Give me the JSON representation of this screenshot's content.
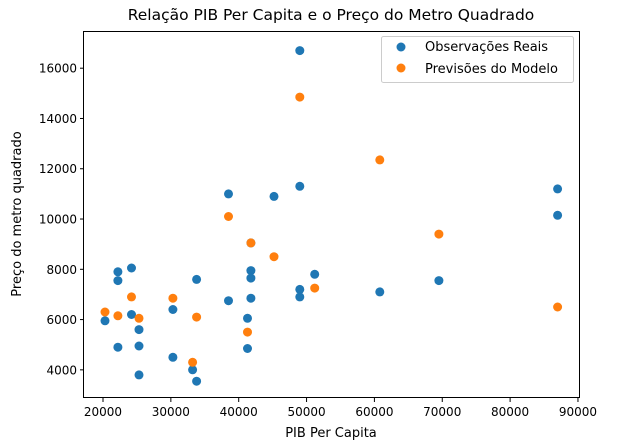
{
  "chart_data": {
    "type": "scatter",
    "title": "Relação PIB Per Capita e o Preço do Metro Quadrado",
    "xlabel": "PIB Per Capita",
    "ylabel": "Preço do metro quadrado",
    "xlim": [
      17200,
      90300
    ],
    "ylim": [
      2880,
      17440
    ],
    "xticks": [
      20000,
      30000,
      40000,
      50000,
      60000,
      70000,
      80000,
      90000
    ],
    "yticks": [
      4000,
      6000,
      8000,
      10000,
      12000,
      14000,
      16000
    ],
    "grid": false,
    "legend_position": "top-right",
    "series": [
      {
        "name": "Observações Reais",
        "color": "#1f77b4",
        "points": [
          [
            20300,
            5950
          ],
          [
            22200,
            7900
          ],
          [
            22200,
            7550
          ],
          [
            22200,
            4900
          ],
          [
            24200,
            8050
          ],
          [
            24200,
            6200
          ],
          [
            25300,
            5600
          ],
          [
            25300,
            4950
          ],
          [
            25300,
            3800
          ],
          [
            30300,
            4500
          ],
          [
            30300,
            6400
          ],
          [
            33200,
            4000
          ],
          [
            33800,
            3550
          ],
          [
            33800,
            7600
          ],
          [
            38500,
            11000
          ],
          [
            38500,
            6750
          ],
          [
            41300,
            6050
          ],
          [
            41300,
            4850
          ],
          [
            41800,
            9050
          ],
          [
            41800,
            7950
          ],
          [
            41800,
            7650
          ],
          [
            41800,
            6850
          ],
          [
            45200,
            10900
          ],
          [
            49000,
            16700
          ],
          [
            49000,
            11300
          ],
          [
            49000,
            7200
          ],
          [
            49000,
            6900
          ],
          [
            51200,
            7800
          ],
          [
            60800,
            7100
          ],
          [
            69500,
            7550
          ],
          [
            87000,
            11200
          ],
          [
            87000,
            10150
          ]
        ]
      },
      {
        "name": "Previsões do Modelo",
        "color": "#ff7f0e",
        "points": [
          [
            20300,
            6300
          ],
          [
            22200,
            6150
          ],
          [
            24200,
            6900
          ],
          [
            25300,
            6050
          ],
          [
            30300,
            6850
          ],
          [
            33200,
            4300
          ],
          [
            33800,
            6100
          ],
          [
            38500,
            10100
          ],
          [
            41300,
            5500
          ],
          [
            41800,
            9050
          ],
          [
            45200,
            8500
          ],
          [
            49000,
            14850
          ],
          [
            51200,
            7250
          ],
          [
            60800,
            12350
          ],
          [
            69500,
            9400
          ],
          [
            87000,
            6500
          ]
        ]
      }
    ]
  }
}
